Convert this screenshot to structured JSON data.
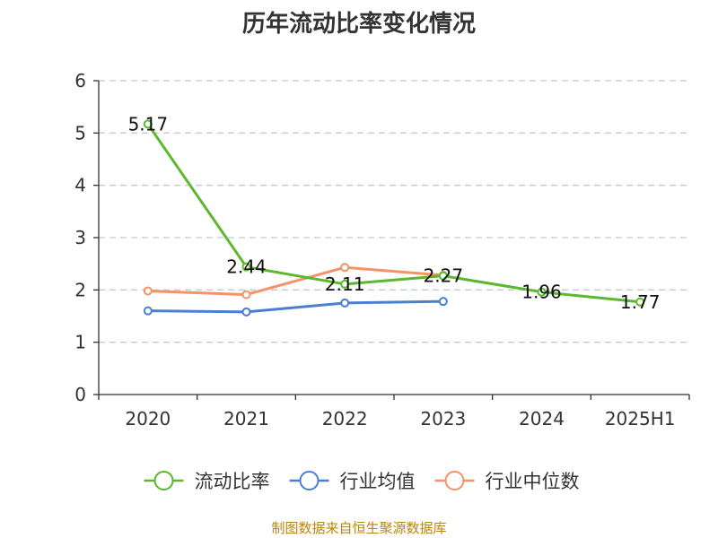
{
  "chart_data": {
    "type": "line",
    "title": "历年流动比率变化情况",
    "categories": [
      "2020",
      "2021",
      "2022",
      "2023",
      "2024",
      "2025H1"
    ],
    "ylim": [
      0,
      6
    ],
    "yticks": [
      "0",
      "1",
      "2",
      "3",
      "4",
      "5",
      "6"
    ],
    "grid": true,
    "legend_position": "bottom",
    "series": [
      {
        "name": "流动比率",
        "color": "#5cb82f",
        "values": [
          5.17,
          2.44,
          2.11,
          2.27,
          1.96,
          1.77
        ],
        "labels": [
          "5.17",
          "2.44",
          "2.11",
          "2.27",
          "1.96",
          "1.77"
        ]
      },
      {
        "name": "行业均值",
        "color": "#4a7fd4",
        "values": [
          1.6,
          1.58,
          1.75,
          1.78,
          null,
          null
        ]
      },
      {
        "name": "行业中位数",
        "color": "#f59266",
        "values": [
          1.98,
          1.91,
          2.43,
          2.28,
          null,
          null
        ]
      }
    ]
  },
  "source": "制图数据来自恒生聚源数据库"
}
